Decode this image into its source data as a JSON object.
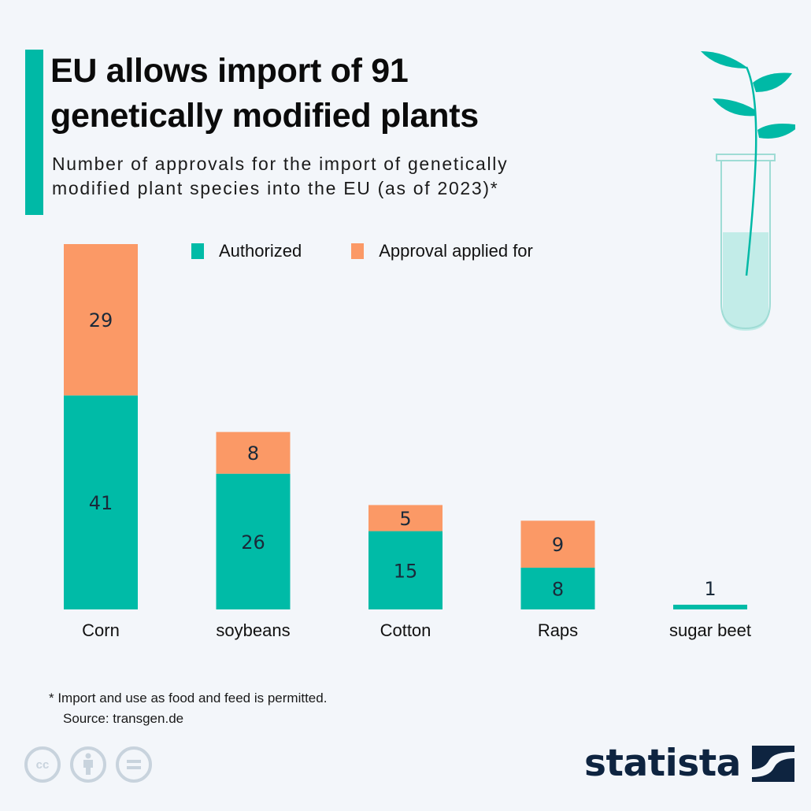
{
  "header": {
    "title_line1": "EU allows import of 91",
    "title_line2": "genetically modified plants",
    "subtitle_line1": "Number of approvals for the import of genetically",
    "subtitle_line2": "modified plant species into the EU (as of 2023)*"
  },
  "legend": {
    "authorized": "Authorized",
    "applied": "Approval applied for"
  },
  "colors": {
    "authorized": "#00bba7",
    "applied": "#fb9966",
    "accent": "#00b9a6",
    "brand": "#0e2440"
  },
  "chart_data": {
    "type": "bar",
    "stacked": true,
    "title": "EU allows import of 91 genetically modified plants",
    "subtitle": "Number of approvals for the import of genetically modified plant species into the EU (as of 2023)*",
    "xlabel": "",
    "ylabel": "",
    "ylim": [
      0,
      70
    ],
    "grid": false,
    "legend_position": "top",
    "categories": [
      "Corn",
      "soybeans",
      "Cotton",
      "Raps",
      "sugar beet"
    ],
    "series": [
      {
        "name": "Authorized",
        "values": [
          41,
          26,
          15,
          8,
          1
        ]
      },
      {
        "name": "Approval applied for",
        "values": [
          29,
          8,
          5,
          9,
          0
        ]
      }
    ]
  },
  "footer": {
    "note": "* Import and use as food and feed is permitted.",
    "source": "Source: transgen.de",
    "cc_icons": [
      "cc-icon",
      "attribution-icon",
      "no-derivatives-icon"
    ],
    "cc_glyphs": [
      "cc",
      "=",
      ""
    ],
    "logo_text": "statista"
  }
}
